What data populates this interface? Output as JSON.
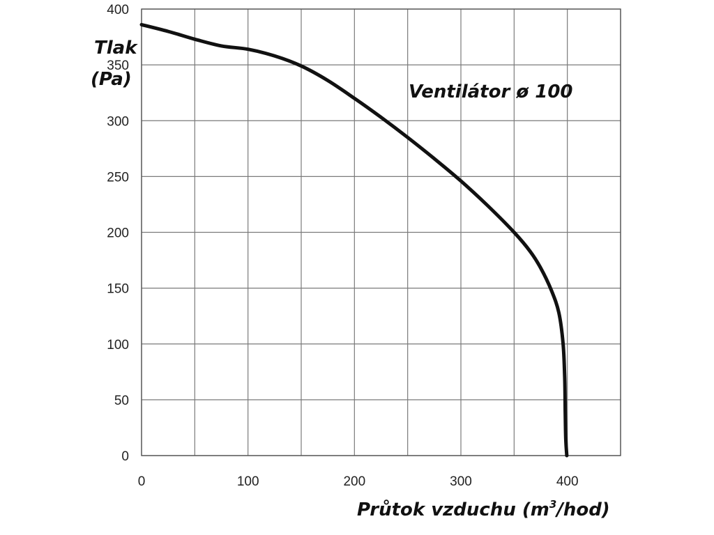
{
  "chart_data": {
    "type": "line",
    "title": "",
    "annotation": "Ventilátor ø 100",
    "ylabel_line1": "Tlak",
    "ylabel_line2": "(Pa)",
    "xlabel": "Průtok vzduchu (m",
    "xlabel_sup": "3",
    "xlabel_tail": "/hod)",
    "xlim": [
      0,
      450
    ],
    "ylim": [
      0,
      400
    ],
    "x_ticks": [
      0,
      100,
      200,
      300,
      400
    ],
    "y_ticks": [
      0,
      50,
      100,
      150,
      200,
      250,
      300,
      350,
      400
    ],
    "x_tick_labels": [
      "0",
      "100",
      "200",
      "300",
      "400"
    ],
    "y_tick_labels": [
      "0",
      "50",
      "100",
      "150",
      "200",
      "250",
      "300",
      "350",
      "400"
    ],
    "x_grid_step": 50,
    "y_grid_step": 50,
    "grid": true,
    "series": [
      {
        "color": "#111111",
        "points": [
          [
            0,
            386
          ],
          [
            25,
            380
          ],
          [
            50,
            373
          ],
          [
            75,
            367
          ],
          [
            100,
            364
          ],
          [
            125,
            358
          ],
          [
            150,
            349
          ],
          [
            175,
            336
          ],
          [
            200,
            320
          ],
          [
            225,
            303
          ],
          [
            250,
            285
          ],
          [
            275,
            266
          ],
          [
            300,
            246
          ],
          [
            325,
            224
          ],
          [
            350,
            200
          ],
          [
            365,
            183
          ],
          [
            375,
            168
          ],
          [
            385,
            148
          ],
          [
            392,
            128
          ],
          [
            396,
            100
          ],
          [
            397.5,
            70
          ],
          [
            398,
            40
          ],
          [
            398.5,
            15
          ],
          [
            399.5,
            0
          ]
        ]
      }
    ]
  }
}
